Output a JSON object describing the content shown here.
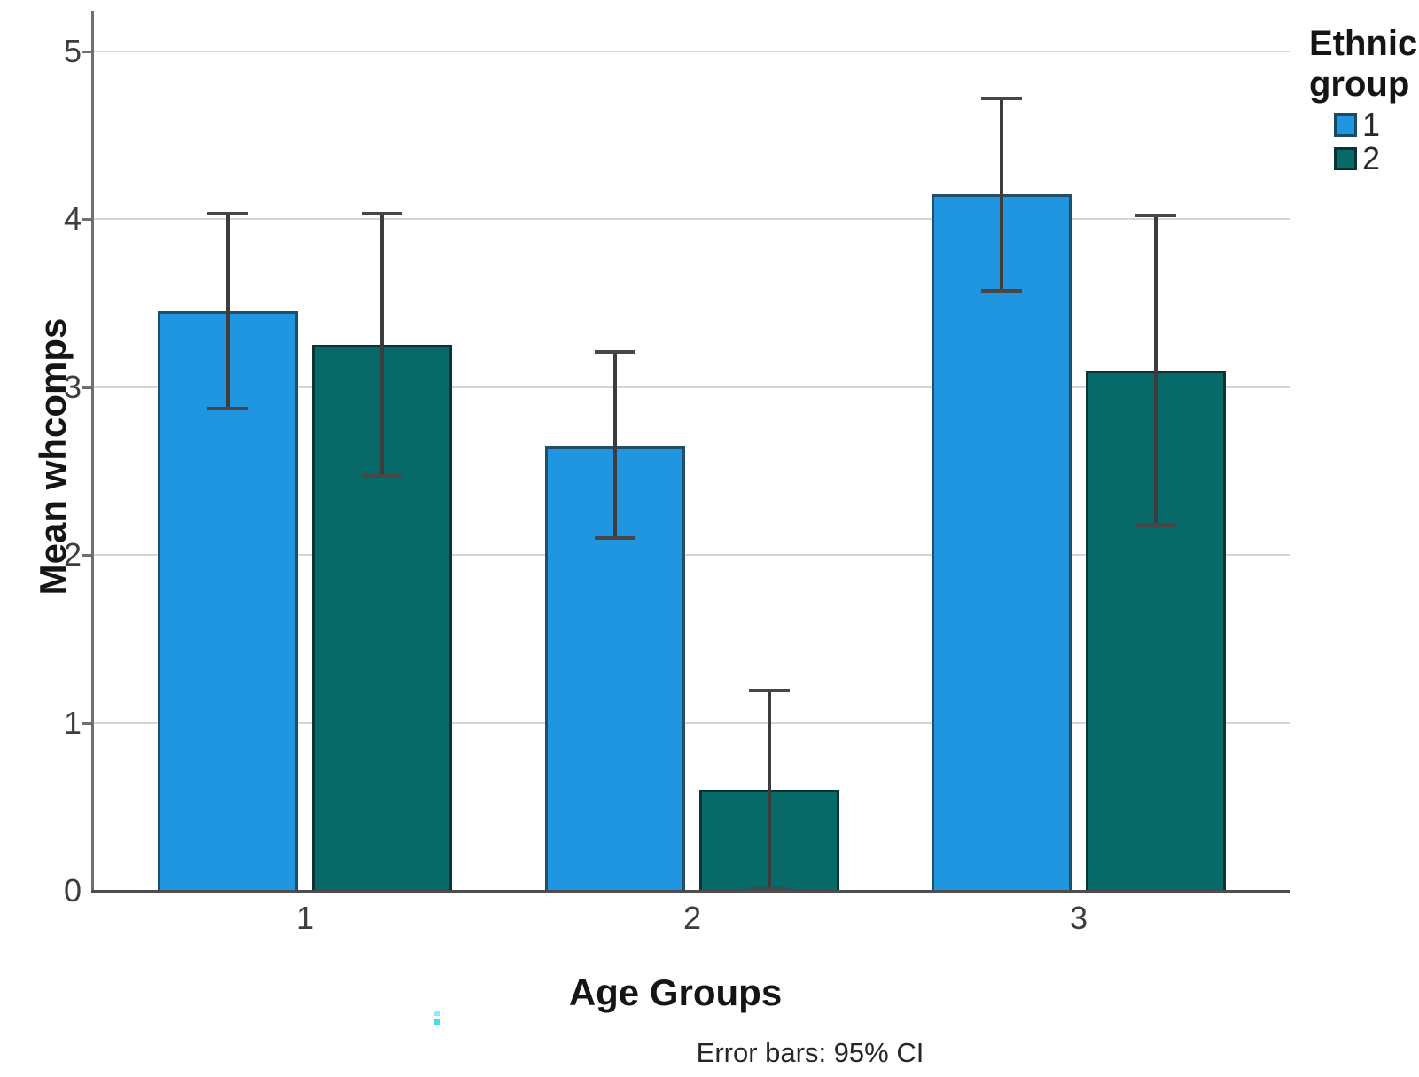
{
  "chart_data": {
    "type": "bar",
    "title": "",
    "xlabel": "Age Groups",
    "ylabel": "Mean whcomps",
    "caption": "Error bars: 95% CI",
    "categories": [
      "1",
      "2",
      "3"
    ],
    "y_ticks": [
      0,
      1,
      2,
      3,
      4,
      5
    ],
    "ylim": [
      0,
      5.25
    ],
    "grid": "horizontal",
    "error_bars": "95% CI",
    "legend": {
      "title": "Ethnic group",
      "position": "top-right",
      "entries": [
        {
          "label": "1",
          "color": "#2196e0"
        },
        {
          "label": "2",
          "color": "#076a68"
        }
      ]
    },
    "series": [
      {
        "name": "1",
        "color": "#2196e0",
        "border_color": "#234e66",
        "values": [
          3.45,
          2.65,
          4.15
        ],
        "ci_low": [
          2.87,
          2.1,
          3.57
        ],
        "ci_high": [
          4.03,
          3.21,
          4.72
        ]
      },
      {
        "name": "2",
        "color": "#076a68",
        "border_color": "#0a3335",
        "values": [
          3.25,
          0.6,
          3.1
        ],
        "ci_low": [
          2.47,
          0.01,
          2.18
        ],
        "ci_high": [
          4.03,
          1.19,
          4.02
        ]
      }
    ]
  }
}
